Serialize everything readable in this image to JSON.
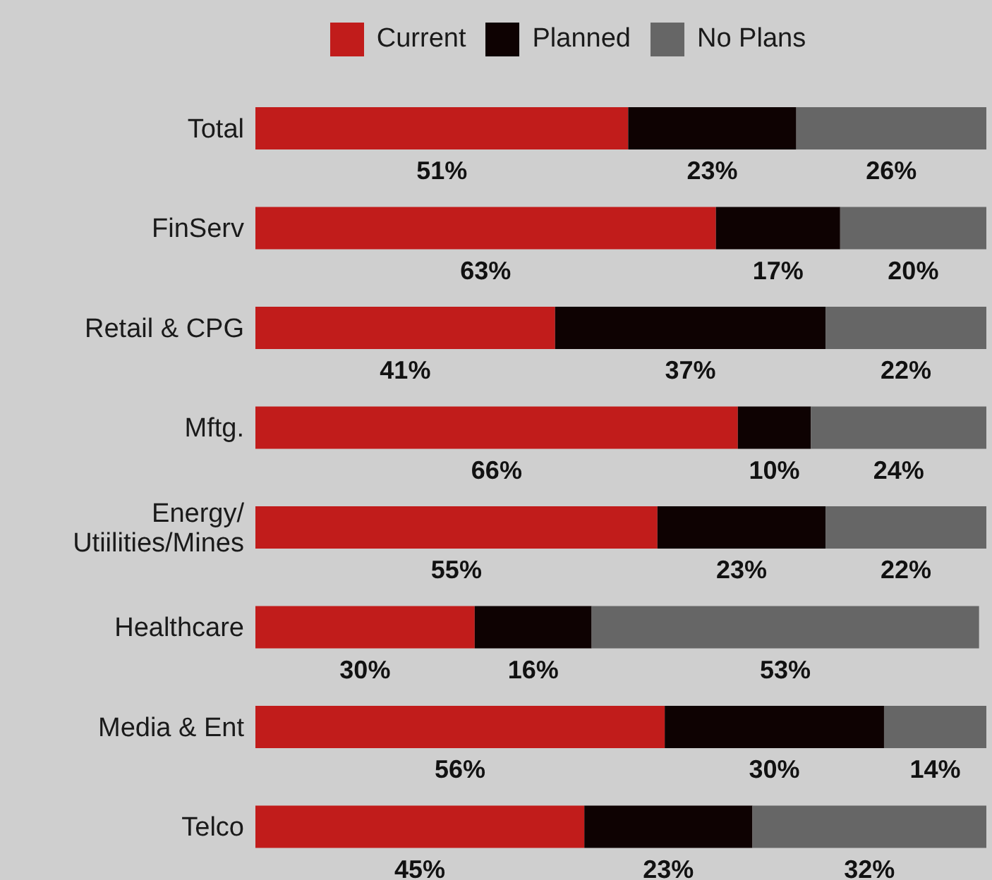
{
  "chart_data": {
    "type": "bar",
    "orientation": "horizontal",
    "stacked": true,
    "legend": "top",
    "tick_labels": "y",
    "categories": [
      "Total",
      "FinServ",
      "Retail & CPG",
      "Mftg.",
      "Energy/ Utiilities/Mines",
      "Healthcare",
      "Media & Ent",
      "Telco"
    ],
    "series": [
      {
        "name": "Current",
        "color": "#c11c1b",
        "values": [
          51,
          63,
          41,
          66,
          55,
          30,
          56,
          45
        ],
        "value_labels": [
          "51%",
          "63%",
          "41%",
          "66%",
          "55%",
          "30%",
          "56%",
          "45%"
        ]
      },
      {
        "name": "Planned",
        "color": "#0e0202",
        "values": [
          23,
          17,
          37,
          10,
          23,
          16,
          30,
          23
        ],
        "value_labels": [
          "23%",
          "17%",
          "37%",
          "10%",
          "23%",
          "16%",
          "30%",
          "23%"
        ]
      },
      {
        "name": "No Plans",
        "color": "#666666",
        "values": [
          26,
          20,
          22,
          24,
          22,
          53,
          14,
          32
        ],
        "value_labels": [
          "26%",
          "20%",
          "22%",
          "24%",
          "22%",
          "53%",
          "14%",
          "32%"
        ]
      }
    ]
  }
}
